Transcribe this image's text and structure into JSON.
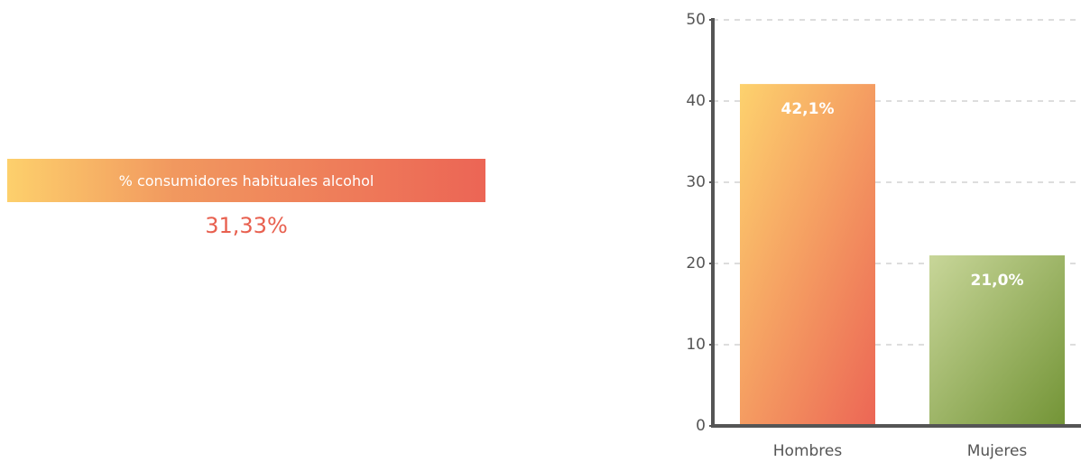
{
  "banner": {
    "label": "% consumidores habituales alcohol",
    "value": "31,33%"
  },
  "chart_data": {
    "type": "bar",
    "categories": [
      "Hombres",
      "Mujeres"
    ],
    "values": [
      42.1,
      21.0
    ],
    "value_labels": [
      "42,1%",
      "21,0%"
    ],
    "colors": [
      [
        "#fdd26e",
        "#ec6655"
      ],
      [
        "#c8d699",
        "#739436"
      ]
    ],
    "ylim": [
      0,
      50
    ],
    "yticks": [
      0,
      10,
      20,
      30,
      40,
      50
    ],
    "grid": true
  }
}
